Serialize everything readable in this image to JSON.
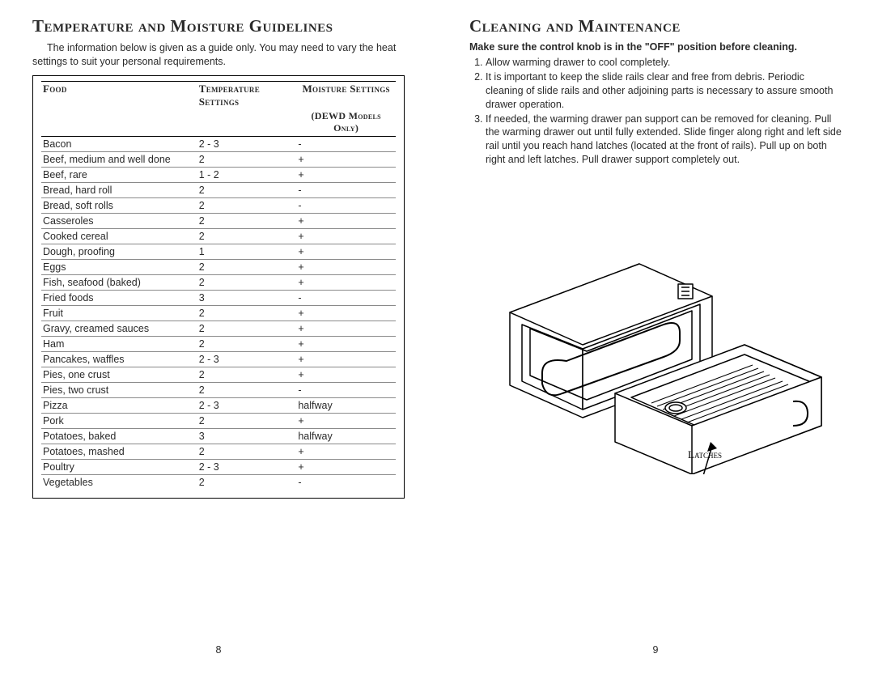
{
  "left": {
    "heading": "Temperature and Moisture Guidelines",
    "intro": "The information below is given as a guide only.  You may need to vary the heat settings to suit your personal requirements.",
    "table": {
      "headers": {
        "food": "Food",
        "temp": "Temperature Settings",
        "moist": "Moisture Settings",
        "moist_sub": "(DEWD Models Only)"
      },
      "rows": [
        {
          "food": "Bacon",
          "temp": "2 - 3",
          "moist": "-"
        },
        {
          "food": "Beef, medium and well done",
          "temp": "2",
          "moist": "+"
        },
        {
          "food": "Beef, rare",
          "temp": "1 - 2",
          "moist": "+"
        },
        {
          "food": "Bread, hard roll",
          "temp": "2",
          "moist": "-"
        },
        {
          "food": "Bread, soft rolls",
          "temp": "2",
          "moist": "-"
        },
        {
          "food": "Casseroles",
          "temp": "2",
          "moist": "+"
        },
        {
          "food": "Cooked cereal",
          "temp": "2",
          "moist": "+"
        },
        {
          "food": "Dough, proofing",
          "temp": "1",
          "moist": "+"
        },
        {
          "food": "Eggs",
          "temp": "2",
          "moist": "+"
        },
        {
          "food": "Fish, seafood (baked)",
          "temp": "2",
          "moist": "+"
        },
        {
          "food": "Fried foods",
          "temp": "3",
          "moist": "-"
        },
        {
          "food": "Fruit",
          "temp": "2",
          "moist": "+"
        },
        {
          "food": "Gravy, creamed sauces",
          "temp": "2",
          "moist": "+"
        },
        {
          "food": "Ham",
          "temp": "2",
          "moist": "+"
        },
        {
          "food": "Pancakes, waffles",
          "temp": "2 - 3",
          "moist": "+"
        },
        {
          "food": "Pies, one crust",
          "temp": "2",
          "moist": "+"
        },
        {
          "food": "Pies, two crust",
          "temp": "2",
          "moist": "-"
        },
        {
          "food": "Pizza",
          "temp": "2 - 3",
          "moist": "halfway"
        },
        {
          "food": "Pork",
          "temp": "2",
          "moist": "+"
        },
        {
          "food": "Potatoes, baked",
          "temp": "3",
          "moist": "halfway"
        },
        {
          "food": "Potatoes, mashed",
          "temp": "2",
          "moist": "+"
        },
        {
          "food": "Poultry",
          "temp": "2 - 3",
          "moist": "+"
        },
        {
          "food": "Vegetables",
          "temp": "2",
          "moist": "-"
        }
      ]
    },
    "page_num": "8"
  },
  "right": {
    "heading": "Cleaning and Maintenance",
    "bold_line": "Make sure the control knob is in the \"OFF\" position before cleaning.",
    "items": [
      "Allow warming drawer to cool completely.",
      "It is important to keep the slide rails clear and free from debris.  Periodic cleaning of slide rails and other adjoining parts is necessary to assure smooth drawer operation.",
      "If needed, the warming drawer pan support can be removed for cleaning.  Pull the warming drawer out until fully extended.  Slide finger along right and left side rail until you reach hand latches (located at the front of rails).  Pull up on both right and left latches.  Pull drawer support completely out."
    ],
    "diagram_label": "Latches",
    "page_num": "9"
  },
  "colors": {
    "text": "#2a2a2a",
    "border": "#000000",
    "row_border": "#8a8a8a",
    "background": "#ffffff"
  }
}
